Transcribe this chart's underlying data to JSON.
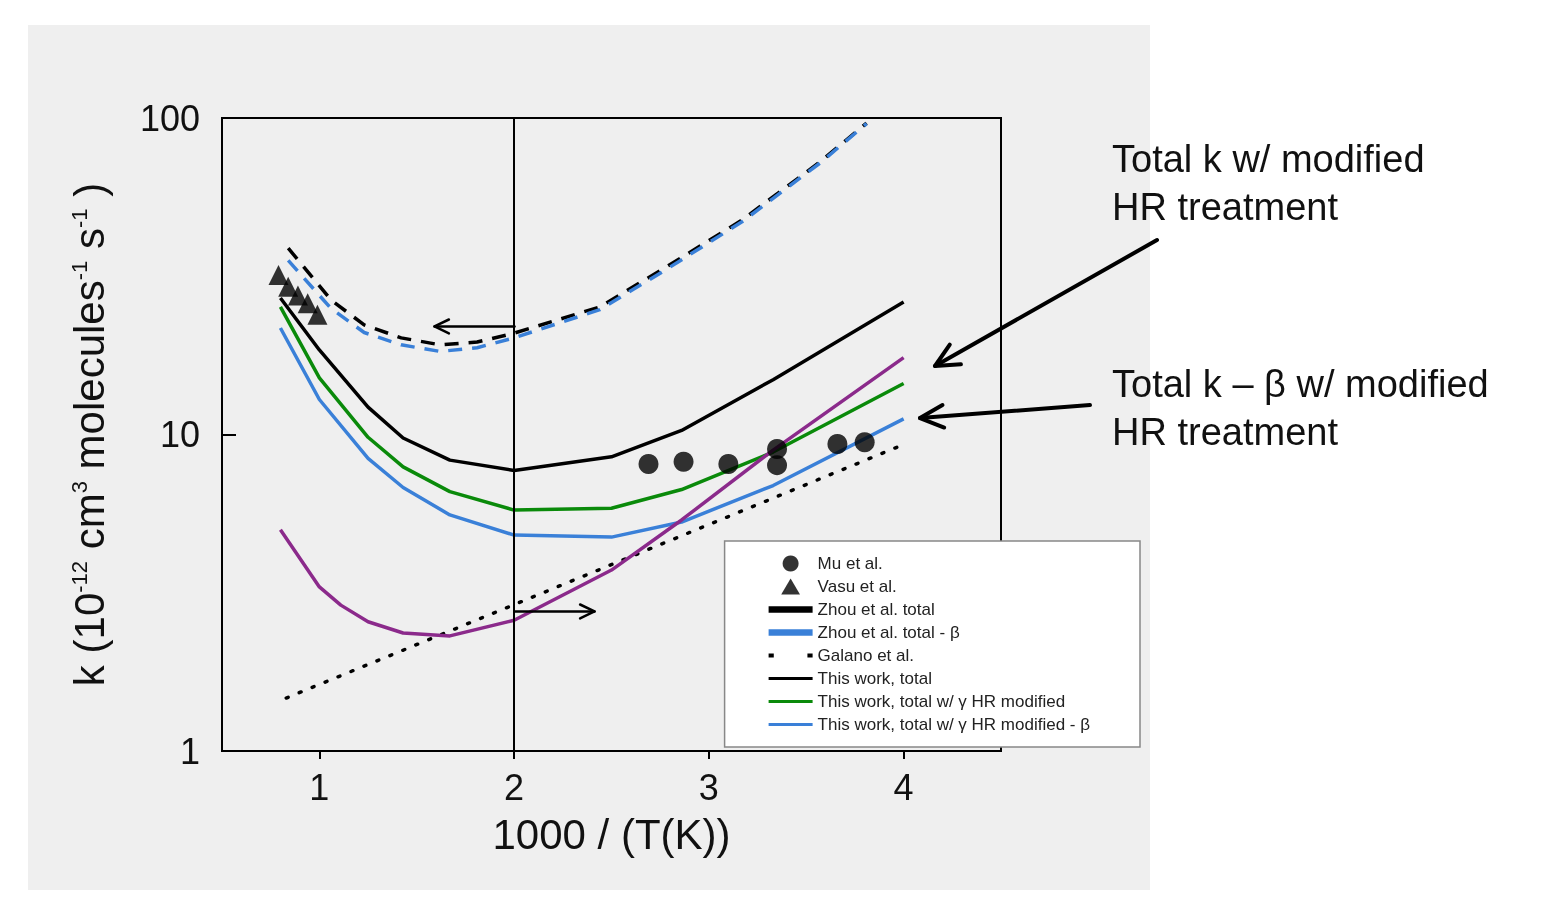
{
  "chart_data": {
    "type": "line",
    "xlabel": "1000 / (T(K))",
    "ylabel": "k (10$^{-12}$ cm$^{3}$ molecules$^{-1}$ s$^{-1}$ )",
    "xlim": [
      0.5,
      4.5
    ],
    "xticks": [
      1,
      2,
      3,
      4
    ],
    "ylim": [
      1,
      100
    ],
    "yticks": [
      1,
      10,
      100
    ],
    "log": "y",
    "grid": false,
    "legend": "bottom right",
    "marker": "none",
    "ref_lines": [
      {
        "axis": "x",
        "value": 2
      }
    ],
    "annotations": [
      "Total k w/ modified\nHR treatment",
      "Total k – β w/ modified\nHR treatment"
    ],
    "series": [
      {
        "name": "Mu et al.",
        "type": "scatter",
        "marker": "circle",
        "color": "#000000",
        "x": [
          2.69,
          2.87,
          3.1,
          3.35,
          3.35,
          3.66,
          3.8
        ],
        "values": [
          8.07,
          8.2,
          8.07,
          9.0,
          8.0,
          9.33,
          9.45
        ]
      },
      {
        "name": "Vasu et al.",
        "type": "scatter",
        "marker": "triangle",
        "color": "#000000",
        "x": [
          0.79,
          0.84,
          0.89,
          0.94,
          0.99
        ],
        "values": [
          31.9,
          29.3,
          27.5,
          26.0,
          23.9
        ]
      },
      {
        "name": "Zhou et al. total",
        "line_style": "dashed",
        "color": "#000000",
        "x": [
          0.84,
          1.06,
          1.23,
          1.42,
          1.62,
          1.81,
          2.0,
          2.44,
          2.78,
          3.17,
          3.57,
          3.81
        ],
        "values": [
          38.8,
          26.6,
          22.2,
          20.2,
          19.2,
          19.6,
          20.9,
          25.3,
          33.8,
          47.6,
          72.6,
          96.4
        ]
      },
      {
        "name": "Zhou et al. total - β",
        "line_style": "dashed",
        "color": "#3a80d8",
        "x": [
          0.84,
          1.06,
          1.23,
          1.42,
          1.62,
          1.81,
          2.0,
          2.44,
          2.78,
          3.17,
          3.57,
          3.81
        ],
        "values": [
          35.5,
          25,
          21,
          19.2,
          18.3,
          18.8,
          20.2,
          24.8,
          33.2,
          47,
          72,
          96
        ]
      },
      {
        "name": "Galano et al.",
        "line_style": "dotted",
        "color": "#000000",
        "x": [
          0.83,
          2.0,
          4.0
        ],
        "values": [
          1.47,
          2.9,
          9.3
        ]
      },
      {
        "name": "This work, total",
        "line_style": "solid",
        "color": "#000000",
        "x": [
          0.8,
          1.0,
          1.25,
          1.43,
          1.67,
          2.0,
          2.5,
          2.86,
          3.33,
          4.0
        ],
        "values": [
          27,
          18.5,
          12.2,
          9.75,
          8.3,
          7.7,
          8.5,
          10.3,
          14.9,
          26.2
        ]
      },
      {
        "name": "This work, total w/ γ HR modified",
        "line_style": "solid",
        "color": "#0a8a0a",
        "x": [
          0.8,
          1.0,
          1.25,
          1.43,
          1.67,
          2.0,
          2.5,
          2.86,
          3.33,
          4.0
        ],
        "values": [
          25.3,
          15.1,
          9.8,
          7.9,
          6.6,
          5.77,
          5.85,
          6.7,
          8.8,
          14.5
        ]
      },
      {
        "name": "This work, total w/ γ HR modified - β",
        "line_style": "solid",
        "color": "#3a80d8",
        "x": [
          0.8,
          1.0,
          1.25,
          1.43,
          1.67,
          2.0,
          2.5,
          2.86,
          3.33,
          4.0
        ],
        "values": [
          21.7,
          12.9,
          8.4,
          6.8,
          5.57,
          4.81,
          4.74,
          5.29,
          6.9,
          11.2
        ]
      },
      {
        "line_style": "solid",
        "color": "#8b2a8b",
        "x": [
          0.8,
          1.0,
          1.11,
          1.25,
          1.43,
          1.67,
          2.0,
          2.5,
          2.86,
          3.33,
          4.0
        ],
        "values": [
          5.0,
          3.3,
          2.89,
          2.56,
          2.36,
          2.31,
          2.59,
          3.73,
          5.37,
          8.93,
          17.5
        ]
      }
    ]
  }
}
